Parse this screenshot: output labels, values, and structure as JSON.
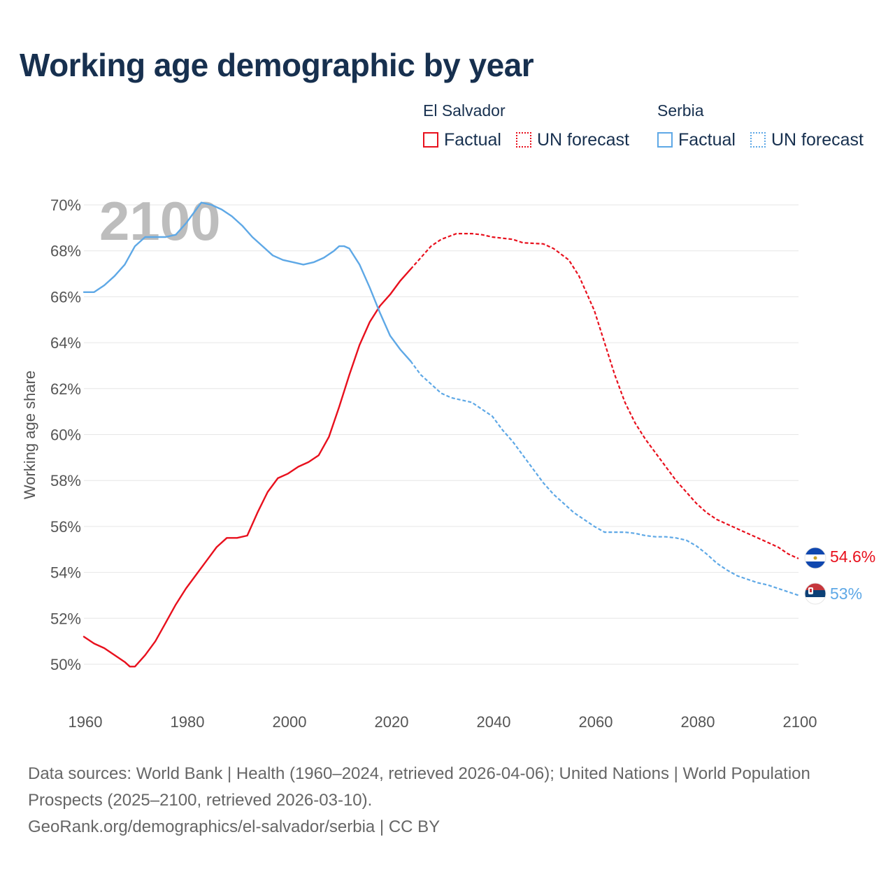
{
  "title": "Working age demographic by year",
  "legend": {
    "groups": [
      {
        "country": "El Salvador",
        "factual_label": "Factual",
        "forecast_label": "UN forecast",
        "color": "#e8101d"
      },
      {
        "country": "Serbia",
        "factual_label": "Factual",
        "forecast_label": "UN forecast",
        "color": "#5ea8e6"
      }
    ]
  },
  "year_watermark": "2100",
  "footer": {
    "sources": "Data sources: World Bank | Health (1960–2024, retrieved 2026-04-06); United Nations | World Population Prospects (2025–2100, retrieved 2026-03-10).",
    "credit": "GeoRank.org/demographics/el-salvador/serbia | CC BY"
  },
  "chart_data": {
    "type": "line",
    "title": "Working age demographic by year",
    "xlabel": "",
    "ylabel": "Working age share",
    "xlim": [
      1960,
      2100
    ],
    "ylim": [
      48,
      70
    ],
    "x_ticks": [
      1960,
      1980,
      2000,
      2020,
      2040,
      2060,
      2080,
      2100
    ],
    "x_tick_labels": [
      "1960",
      "1980",
      "2000",
      "2020",
      "2040",
      "2060",
      "2080",
      "2100"
    ],
    "y_ticks": [
      50,
      52,
      54,
      56,
      58,
      60,
      62,
      64,
      66,
      68,
      70
    ],
    "y_tick_labels": [
      "50%",
      "52%",
      "54%",
      "56%",
      "58%",
      "60%",
      "62%",
      "64%",
      "66%",
      "68%",
      "70%"
    ],
    "factual_until": 2024,
    "series": [
      {
        "name": "El Salvador",
        "color": "#e8101d",
        "end_label": "54.6%",
        "points": [
          [
            1960,
            51.2
          ],
          [
            1962,
            50.9
          ],
          [
            1964,
            50.7
          ],
          [
            1966,
            50.4
          ],
          [
            1968,
            50.1
          ],
          [
            1969,
            49.9
          ],
          [
            1970,
            49.9
          ],
          [
            1972,
            50.4
          ],
          [
            1974,
            51.0
          ],
          [
            1976,
            51.8
          ],
          [
            1978,
            52.6
          ],
          [
            1980,
            53.3
          ],
          [
            1982,
            53.9
          ],
          [
            1984,
            54.5
          ],
          [
            1986,
            55.1
          ],
          [
            1988,
            55.5
          ],
          [
            1990,
            55.5
          ],
          [
            1992,
            55.6
          ],
          [
            1994,
            56.6
          ],
          [
            1996,
            57.5
          ],
          [
            1998,
            58.1
          ],
          [
            2000,
            58.3
          ],
          [
            2002,
            58.6
          ],
          [
            2004,
            58.8
          ],
          [
            2006,
            59.1
          ],
          [
            2008,
            59.9
          ],
          [
            2010,
            61.2
          ],
          [
            2012,
            62.6
          ],
          [
            2014,
            63.9
          ],
          [
            2016,
            64.9
          ],
          [
            2018,
            65.6
          ],
          [
            2020,
            66.1
          ],
          [
            2022,
            66.7
          ],
          [
            2024,
            67.2
          ],
          [
            2026,
            67.7
          ],
          [
            2028,
            68.2
          ],
          [
            2030,
            68.5
          ],
          [
            2033,
            68.75
          ],
          [
            2036,
            68.75
          ],
          [
            2038,
            68.7
          ],
          [
            2040,
            68.6
          ],
          [
            2044,
            68.5
          ],
          [
            2046,
            68.35
          ],
          [
            2050,
            68.3
          ],
          [
            2052,
            68.1
          ],
          [
            2055,
            67.6
          ],
          [
            2057,
            66.9
          ],
          [
            2060,
            65.4
          ],
          [
            2062,
            64.0
          ],
          [
            2064,
            62.6
          ],
          [
            2066,
            61.4
          ],
          [
            2068,
            60.5
          ],
          [
            2070,
            59.8
          ],
          [
            2072,
            59.2
          ],
          [
            2074,
            58.6
          ],
          [
            2076,
            58.0
          ],
          [
            2078,
            57.5
          ],
          [
            2080,
            57.0
          ],
          [
            2082,
            56.6
          ],
          [
            2084,
            56.3
          ],
          [
            2086,
            56.1
          ],
          [
            2088,
            55.9
          ],
          [
            2090,
            55.7
          ],
          [
            2092,
            55.5
          ],
          [
            2094,
            55.3
          ],
          [
            2096,
            55.1
          ],
          [
            2098,
            54.8
          ],
          [
            2100,
            54.6
          ]
        ]
      },
      {
        "name": "Serbia",
        "color": "#5ea8e6",
        "end_label": "53%",
        "points": [
          [
            1960,
            66.2
          ],
          [
            1962,
            66.2
          ],
          [
            1964,
            66.5
          ],
          [
            1966,
            66.9
          ],
          [
            1968,
            67.4
          ],
          [
            1970,
            68.2
          ],
          [
            1972,
            68.6
          ],
          [
            1974,
            68.6
          ],
          [
            1976,
            68.6
          ],
          [
            1978,
            68.7
          ],
          [
            1980,
            69.2
          ],
          [
            1982,
            69.8
          ],
          [
            1983,
            70.1
          ],
          [
            1985,
            70.0
          ],
          [
            1987,
            69.8
          ],
          [
            1989,
            69.5
          ],
          [
            1991,
            69.1
          ],
          [
            1993,
            68.6
          ],
          [
            1995,
            68.2
          ],
          [
            1997,
            67.8
          ],
          [
            1999,
            67.6
          ],
          [
            2001,
            67.5
          ],
          [
            2003,
            67.4
          ],
          [
            2005,
            67.5
          ],
          [
            2007,
            67.7
          ],
          [
            2009,
            68.0
          ],
          [
            2010,
            68.2
          ],
          [
            2011,
            68.2
          ],
          [
            2012,
            68.1
          ],
          [
            2014,
            67.4
          ],
          [
            2016,
            66.4
          ],
          [
            2018,
            65.3
          ],
          [
            2020,
            64.3
          ],
          [
            2022,
            63.7
          ],
          [
            2024,
            63.2
          ],
          [
            2026,
            62.6
          ],
          [
            2028,
            62.2
          ],
          [
            2030,
            61.8
          ],
          [
            2032,
            61.6
          ],
          [
            2034,
            61.5
          ],
          [
            2036,
            61.4
          ],
          [
            2038,
            61.1
          ],
          [
            2040,
            60.8
          ],
          [
            2042,
            60.2
          ],
          [
            2044,
            59.7
          ],
          [
            2046,
            59.1
          ],
          [
            2048,
            58.5
          ],
          [
            2050,
            57.9
          ],
          [
            2052,
            57.4
          ],
          [
            2054,
            57.0
          ],
          [
            2056,
            56.6
          ],
          [
            2058,
            56.3
          ],
          [
            2060,
            56.0
          ],
          [
            2062,
            55.75
          ],
          [
            2064,
            55.75
          ],
          [
            2066,
            55.75
          ],
          [
            2068,
            55.7
          ],
          [
            2070,
            55.6
          ],
          [
            2072,
            55.55
          ],
          [
            2074,
            55.55
          ],
          [
            2076,
            55.5
          ],
          [
            2078,
            55.4
          ],
          [
            2080,
            55.15
          ],
          [
            2082,
            54.8
          ],
          [
            2084,
            54.4
          ],
          [
            2086,
            54.1
          ],
          [
            2088,
            53.85
          ],
          [
            2090,
            53.7
          ],
          [
            2092,
            53.55
          ],
          [
            2094,
            53.45
          ],
          [
            2096,
            53.3
          ],
          [
            2098,
            53.15
          ],
          [
            2100,
            53.0
          ]
        ]
      }
    ]
  }
}
